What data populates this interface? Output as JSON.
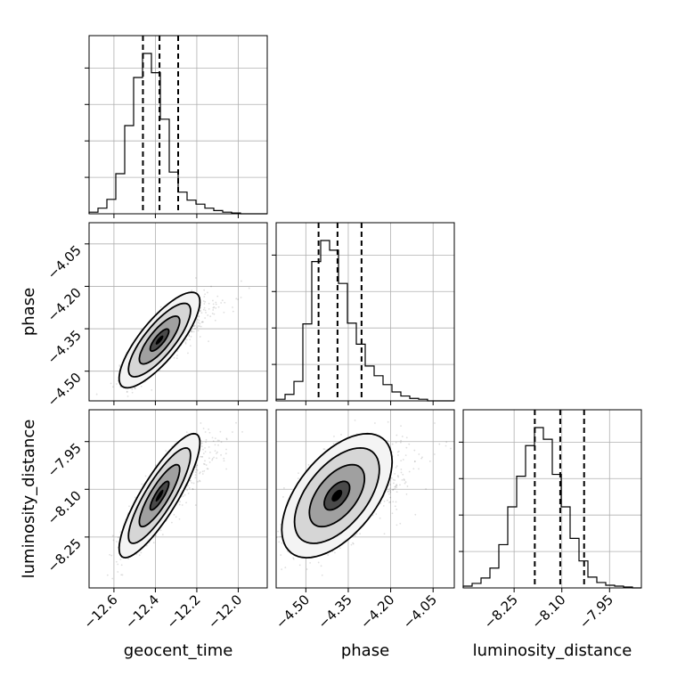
{
  "chart_data": {
    "type": "corner",
    "parameters": [
      {
        "name": "geocent_time",
        "label": "geocent_time",
        "range": [
          -12.72,
          -11.86
        ],
        "ticks": [
          -12.6,
          -12.4,
          -12.2,
          -12.0
        ],
        "ticklabels": [
          "−12.6",
          "−12.4",
          "−12.2",
          "−12.0"
        ],
        "quantiles": [
          -12.46,
          -12.38,
          -12.29
        ],
        "hist_edges_start": -12.72,
        "hist_bin": 0.043,
        "hist_counts": [
          2,
          7,
          18,
          50,
          110,
          170,
          200,
          176,
          118,
          52,
          27,
          17,
          12,
          7,
          4,
          2,
          1,
          0,
          0,
          0
        ]
      },
      {
        "name": "phase",
        "label": "phase",
        "range": [
          -4.605,
          -3.975
        ],
        "ticks": [
          -4.5,
          -4.35,
          -4.2,
          -4.05
        ],
        "ticklabels": [
          "−4.50",
          "−4.35",
          "−4.20",
          "−4.05"
        ],
        "quantiles": [
          -4.455,
          -4.388,
          -4.303
        ],
        "hist_edges_start": -4.605,
        "hist_bin": 0.0315,
        "hist_counts": [
          2,
          8,
          24,
          95,
          172,
          198,
          186,
          145,
          96,
          70,
          43,
          31,
          20,
          11,
          6,
          3,
          2,
          0,
          0,
          0
        ]
      },
      {
        "name": "luminosity_distance",
        "label": "luminosity_distance",
        "range": [
          -8.41,
          -7.85
        ],
        "ticks": [
          -8.25,
          -8.1,
          -7.95
        ],
        "ticklabels": [
          "−8.25",
          "−8.10",
          "−7.95"
        ],
        "quantiles": [
          -8.185,
          -8.105,
          -8.03
        ],
        "hist_edges_start": -8.41,
        "hist_bin": 0.028,
        "hist_counts": [
          2,
          5,
          11,
          22,
          48,
          90,
          124,
          158,
          178,
          165,
          126,
          90,
          55,
          30,
          12,
          6,
          3,
          2,
          1,
          0
        ]
      }
    ],
    "pairs": [
      {
        "x": "geocent_time",
        "y": "phase",
        "mean": [
          -12.38,
          -4.39
        ],
        "sd": [
          0.075,
          0.065
        ],
        "corr": 0.8
      },
      {
        "x": "geocent_time",
        "y": "luminosity_distance",
        "mean": [
          -12.38,
          -8.12
        ],
        "sd": [
          0.075,
          0.075
        ],
        "corr": 0.85
      },
      {
        "x": "phase",
        "y": "luminosity_distance",
        "mean": [
          -4.39,
          -8.12
        ],
        "sd": [
          0.075,
          0.075
        ],
        "corr": 0.55
      }
    ],
    "grid": true
  }
}
